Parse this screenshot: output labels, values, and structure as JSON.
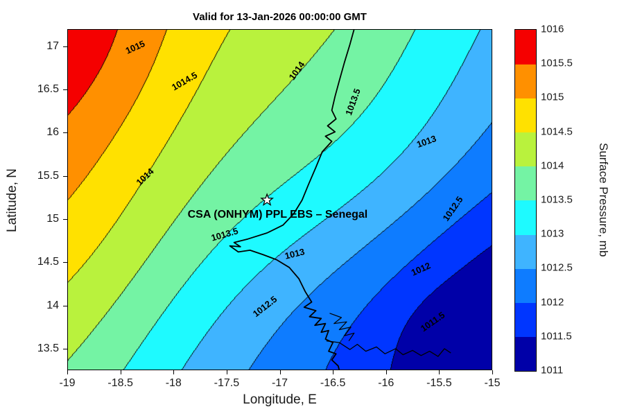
{
  "figure": {
    "title": "Valid for 13-Jan-2026 00:00:00 GMT",
    "xlabel": "Longitude, E",
    "ylabel": "Latitude, N"
  },
  "axes": {
    "lon_range": [
      -19,
      -15
    ],
    "lat_range": [
      13.25,
      17.2
    ],
    "x_tick_values": [
      -19,
      -18.5,
      -18,
      -17.5,
      -17,
      -16.5,
      -16,
      -15.5,
      -15
    ],
    "x_tick_labels": [
      "-19",
      "-18.5",
      "-18",
      "-17.5",
      "-17",
      "-16.5",
      "-16",
      "-15.5",
      "-15"
    ],
    "y_tick_values": [
      13.5,
      14,
      14.5,
      15,
      15.5,
      16,
      16.5,
      17
    ],
    "y_tick_labels": [
      "13.5",
      "14",
      "14.5",
      "15",
      "15.5",
      "16",
      "16.5",
      "17"
    ]
  },
  "colorbar": {
    "label": "Surface Pressure, mb",
    "tick_labels": [
      "1011",
      "1011.5",
      "1012",
      "1012.5",
      "1013",
      "1013.5",
      "1014",
      "1014.5",
      "1015",
      "1015.5",
      "1016"
    ],
    "tick_values": [
      1011,
      1011.5,
      1012,
      1012.5,
      1013,
      1013.5,
      1014,
      1014.5,
      1015,
      1015.5,
      1016
    ],
    "band_colors": [
      "#0000A8",
      "#0036FF",
      "#0E7CFF",
      "#3FB4FF",
      "#1EFAFF",
      "#74F3A4",
      "#B9F23D",
      "#FFE100",
      "#FF9000",
      "#F50000"
    ]
  },
  "chart_data": {
    "type": "heatmap",
    "subtype": "filled_contour_map",
    "title": "Valid for 13-Jan-2026 00:00:00 GMT",
    "xlabel": "Longitude, E",
    "ylabel": "Latitude, N",
    "variable": "Surface Pressure",
    "units": "mb",
    "lon_range": [
      -19,
      -15
    ],
    "lat_range": [
      13.25,
      17.2
    ],
    "levels_mb": {
      "min": 1011,
      "max": 1016,
      "step": 0.5
    },
    "gradient_description": "high pressure ~1015.7 mb at NW corner decreasing to ~1011 mb at SE corner, diagonal banded contours",
    "field_model": {
      "base": 1013.7,
      "du": -2.5,
      "dv": 1.8,
      "bumps": [
        {
          "amp": 0.35,
          "cu": 0.0,
          "cv": 1.0,
          "su": 0.07,
          "sv": 0.1
        },
        {
          "amp": 0.35,
          "cu": 0.05,
          "cv": 0.3,
          "su": 0.2,
          "sv": 0.18
        },
        {
          "amp": -0.45,
          "cu": 0.95,
          "cv": 0.1,
          "su": 0.25,
          "sv": 0.12
        },
        {
          "amp": -0.25,
          "cu": 0.93,
          "cv": 0.1,
          "su": 0.012,
          "sv": 0.012
        }
      ],
      "waves": [
        {
          "amp": 0.1,
          "fu": 8,
          "fv": 0,
          "ph": 2.2
        },
        {
          "amp": 0.08,
          "fu": 0,
          "fv": 6,
          "ph": 3.5708
        }
      ]
    },
    "contour_labels": [
      {
        "text": "1015",
        "lon": -18.36,
        "lat": 16.99,
        "rot": -24
      },
      {
        "text": "1014.5",
        "lon": -17.9,
        "lat": 16.6,
        "rot": -30
      },
      {
        "text": "1014",
        "lon": -16.84,
        "lat": 16.72,
        "rot": -55
      },
      {
        "text": "1013.5",
        "lon": -16.31,
        "lat": 16.36,
        "rot": -70
      },
      {
        "text": "1014",
        "lon": -18.27,
        "lat": 15.49,
        "rot": -44
      },
      {
        "text": "1013",
        "lon": -15.62,
        "lat": 15.9,
        "rot": -20
      },
      {
        "text": "1013.5",
        "lon": -17.52,
        "lat": 14.82,
        "rot": -16
      },
      {
        "text": "1013",
        "lon": -16.86,
        "lat": 14.6,
        "rot": -14
      },
      {
        "text": "1012.5",
        "lon": -15.37,
        "lat": 15.12,
        "rot": -55
      },
      {
        "text": "1012.5",
        "lon": -17.14,
        "lat": 13.99,
        "rot": -38
      },
      {
        "text": "1012",
        "lon": -15.67,
        "lat": 14.42,
        "rot": -24
      },
      {
        "text": "1011.5",
        "lon": -15.56,
        "lat": 13.81,
        "rot": -35
      }
    ],
    "annotation": {
      "text": "CSA (ONHYM) PPL EBS  – Senegal",
      "lon": -17.02,
      "lat": 15.05
    },
    "station_star": {
      "lon": -17.12,
      "lat": 15.22
    },
    "coastline_lonlat": [
      [
        -16.3,
        17.2
      ],
      [
        -16.34,
        17.02
      ],
      [
        -16.39,
        16.82
      ],
      [
        -16.44,
        16.6
      ],
      [
        -16.48,
        16.42
      ],
      [
        -16.51,
        16.26
      ],
      [
        -16.47,
        16.16
      ],
      [
        -16.55,
        16.08
      ],
      [
        -16.48,
        16.01
      ],
      [
        -16.57,
        15.96
      ],
      [
        -16.51,
        15.9
      ],
      [
        -16.6,
        15.78
      ],
      [
        -16.66,
        15.6
      ],
      [
        -16.73,
        15.4
      ],
      [
        -16.79,
        15.22
      ],
      [
        -16.87,
        15.06
      ],
      [
        -16.97,
        14.93
      ],
      [
        -17.12,
        14.84
      ],
      [
        -17.3,
        14.77
      ],
      [
        -17.43,
        14.73
      ],
      [
        -17.37,
        14.68
      ],
      [
        -17.47,
        14.69
      ],
      [
        -17.39,
        14.62
      ],
      [
        -17.28,
        14.64
      ],
      [
        -17.16,
        14.59
      ],
      [
        -17.03,
        14.53
      ],
      [
        -16.91,
        14.44
      ],
      [
        -16.82,
        14.31
      ],
      [
        -16.76,
        14.16
      ],
      [
        -16.7,
        14.04
      ],
      [
        -16.77,
        13.98
      ],
      [
        -16.66,
        13.94
      ],
      [
        -16.72,
        13.87
      ],
      [
        -16.61,
        13.85
      ],
      [
        -16.67,
        13.77
      ],
      [
        -16.57,
        13.79
      ],
      [
        -16.61,
        13.69
      ],
      [
        -16.54,
        13.71
      ],
      [
        -16.57,
        13.61
      ],
      [
        -16.5,
        13.57
      ],
      [
        -16.54,
        13.47
      ],
      [
        -16.47,
        13.44
      ],
      [
        -16.51,
        13.37
      ],
      [
        -16.45,
        13.3
      ],
      [
        -16.44,
        13.25
      ]
    ],
    "river_lonlat": [
      [
        -16.56,
        13.59
      ],
      [
        -16.44,
        13.57
      ],
      [
        -16.34,
        13.49
      ],
      [
        -16.27,
        13.55
      ],
      [
        -16.19,
        13.47
      ],
      [
        -16.09,
        13.52
      ],
      [
        -16.01,
        13.44
      ],
      [
        -15.91,
        13.5
      ],
      [
        -15.84,
        13.43
      ],
      [
        -15.75,
        13.48
      ],
      [
        -15.67,
        13.42
      ],
      [
        -15.59,
        13.47
      ],
      [
        -15.51,
        13.41
      ],
      [
        -15.45,
        13.5
      ],
      [
        -15.39,
        13.45
      ]
    ],
    "delta_lonlat": [
      [
        -16.53,
        13.91
      ],
      [
        -16.42,
        13.86
      ],
      [
        -16.49,
        13.79
      ],
      [
        -16.37,
        13.81
      ],
      [
        -16.44,
        13.72
      ],
      [
        -16.33,
        13.75
      ],
      [
        -16.39,
        13.65
      ],
      [
        -16.3,
        13.68
      ],
      [
        -16.35,
        13.59
      ]
    ]
  }
}
